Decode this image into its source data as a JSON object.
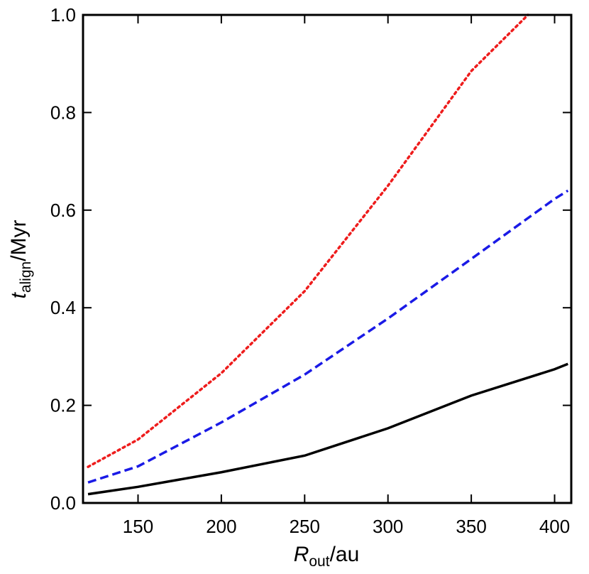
{
  "chart_data": {
    "type": "line",
    "x_label": {
      "symbol": "R",
      "subscript": "out",
      "unit": "/au"
    },
    "y_label": {
      "symbol": "t",
      "subscript": "align",
      "unit": "/Myr"
    },
    "xlim": [
      117,
      410
    ],
    "xticks": [
      150,
      200,
      250,
      300,
      350,
      400
    ],
    "ylim": [
      0,
      1
    ],
    "yticks": [
      {
        "value": 0,
        "label": "0.0"
      },
      0.2,
      0.4,
      0.6,
      0.8,
      {
        "value": 1,
        "label": "1.0"
      }
    ],
    "series": [
      {
        "color": "#000000",
        "dash": "solid",
        "x": [
          120,
          150,
          200,
          250,
          300,
          350,
          400,
          408
        ],
        "values": [
          0.018,
          0.033,
          0.063,
          0.097,
          0.153,
          0.22,
          0.274,
          0.285
        ]
      },
      {
        "color": "#1a1ae6",
        "dash": "dashed",
        "x": [
          120,
          150,
          200,
          250,
          300,
          350,
          400,
          408
        ],
        "values": [
          0.042,
          0.075,
          0.165,
          0.263,
          0.378,
          0.5,
          0.623,
          0.64
        ]
      },
      {
        "color": "#ee1c1c",
        "dash": "dotted",
        "x": [
          120,
          150,
          200,
          250,
          300,
          350,
          384
        ],
        "values": [
          0.074,
          0.13,
          0.266,
          0.434,
          0.65,
          0.885,
          1.0
        ]
      }
    ]
  }
}
